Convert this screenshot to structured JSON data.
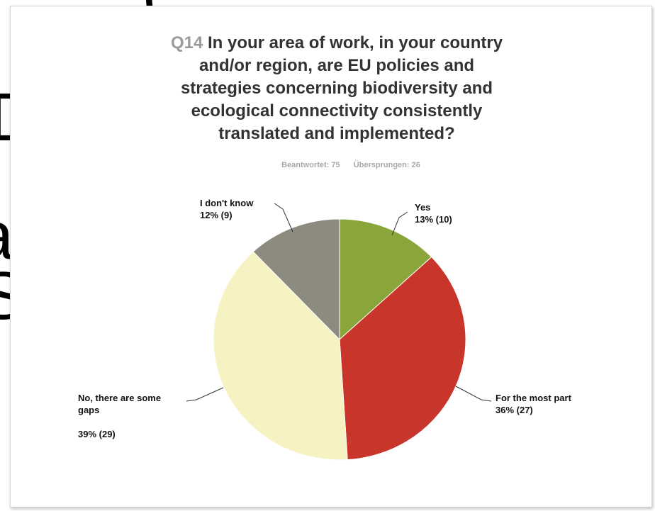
{
  "background_fragments": [
    "(",
    "D",
    "a",
    "S"
  ],
  "title": {
    "question_number": "Q14",
    "lines": [
      "In your area of work, in your country",
      "and/or region, are EU policies and",
      "strategies concerning biodiversity and",
      "ecological connectivity consistently",
      "translated and implemented?"
    ]
  },
  "stats": {
    "answered": "Beantwortet: 75",
    "skipped": "Übersprungen: 26"
  },
  "chart_data": {
    "type": "pie",
    "title": "Q14 In your area of work, in your country and/or region, are EU policies and strategies concerning biodiversity and ecological connectivity consistently translated and implemented?",
    "slices": [
      {
        "name": "Yes",
        "percent": 13,
        "count": 10,
        "color": "#8aa63a",
        "label_lines": [
          "Yes",
          "13% (10)"
        ]
      },
      {
        "name": "For the most part",
        "percent": 36,
        "count": 27,
        "color": "#c8352a",
        "label_lines": [
          "For the most part",
          "36% (27)"
        ]
      },
      {
        "name": "No, there are some gaps",
        "percent": 39,
        "count": 29,
        "color": "#f6f2c2",
        "label_lines": [
          "No, there are some",
          "gaps",
          "",
          "39% (29)"
        ]
      },
      {
        "name": "I don't know",
        "percent": 12,
        "count": 9,
        "color": "#8d8a80",
        "label_lines": [
          "I don't know",
          "12% (9)"
        ]
      }
    ]
  }
}
